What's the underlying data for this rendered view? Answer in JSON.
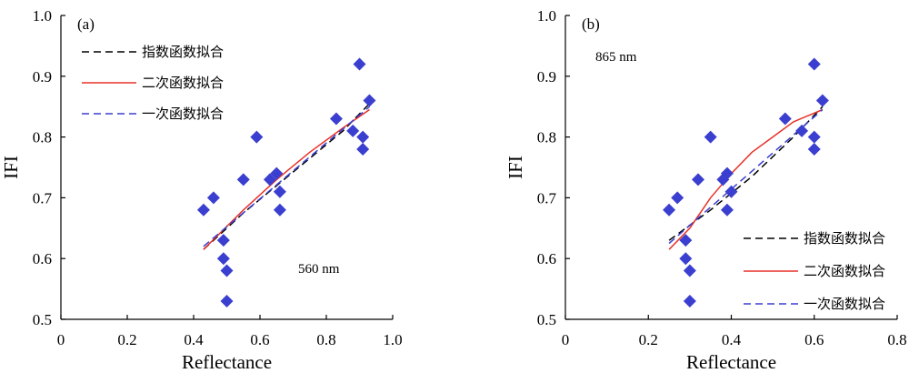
{
  "colors": {
    "points": "#3b3fcf",
    "exponential": "#000000",
    "quadratic": "#e8312a",
    "linear": "#3b3fcf"
  },
  "chart_data": [
    {
      "type": "scatter",
      "tag": "(a)",
      "annotation": "560 nm",
      "xlabel": "Reflectance",
      "ylabel": "IFI",
      "xlim": [
        0,
        1.0
      ],
      "ylim": [
        0.5,
        1.0
      ],
      "xticks": [
        0,
        0.2,
        0.4,
        0.6,
        0.8,
        1.0
      ],
      "xtick_labels": [
        "0",
        "0.2",
        "0.4",
        "0.6",
        "0.8",
        "1.0"
      ],
      "yticks": [
        0.5,
        0.6,
        0.7,
        0.8,
        0.9,
        1.0
      ],
      "ytick_labels": [
        "0.5",
        "0.6",
        "0.7",
        "0.8",
        "0.9",
        "1.0"
      ],
      "legend_position": "top-left",
      "points": [
        [
          0.43,
          0.68
        ],
        [
          0.46,
          0.7
        ],
        [
          0.49,
          0.63
        ],
        [
          0.49,
          0.6
        ],
        [
          0.5,
          0.58
        ],
        [
          0.5,
          0.53
        ],
        [
          0.55,
          0.73
        ],
        [
          0.59,
          0.8
        ],
        [
          0.63,
          0.73
        ],
        [
          0.65,
          0.74
        ],
        [
          0.66,
          0.68
        ],
        [
          0.66,
          0.71
        ],
        [
          0.83,
          0.83
        ],
        [
          0.88,
          0.81
        ],
        [
          0.9,
          0.92
        ],
        [
          0.91,
          0.8
        ],
        [
          0.91,
          0.78
        ],
        [
          0.93,
          0.86
        ]
      ],
      "fits": [
        {
          "name": "指数函数拟合",
          "kind": "exponential",
          "dash": "8,5",
          "x": [
            0.43,
            0.55,
            0.65,
            0.75,
            0.85,
            0.93
          ],
          "y": [
            0.615,
            0.675,
            0.72,
            0.765,
            0.81,
            0.855
          ]
        },
        {
          "name": "二次函数拟合",
          "kind": "quadratic",
          "dash": "",
          "x": [
            0.43,
            0.55,
            0.65,
            0.75,
            0.85,
            0.93
          ],
          "y": [
            0.615,
            0.68,
            0.73,
            0.775,
            0.815,
            0.845
          ]
        },
        {
          "name": "一次函数拟合",
          "kind": "linear",
          "dash": "8,5",
          "x": [
            0.43,
            0.93
          ],
          "y": [
            0.62,
            0.85
          ]
        }
      ]
    },
    {
      "type": "scatter",
      "tag": "(b)",
      "annotation": "865 nm",
      "xlabel": "Reflectance",
      "ylabel": "IFI",
      "xlim": [
        0,
        0.8
      ],
      "ylim": [
        0.5,
        1.0
      ],
      "xticks": [
        0,
        0.2,
        0.4,
        0.6,
        0.8
      ],
      "xtick_labels": [
        "0",
        "0.2",
        "0.4",
        "0.6",
        "0.8"
      ],
      "yticks": [
        0.5,
        0.6,
        0.7,
        0.8,
        0.9,
        1.0
      ],
      "ytick_labels": [
        "0.5",
        "0.6",
        "0.7",
        "0.8",
        "0.9",
        "1.0"
      ],
      "legend_position": "bottom-right",
      "points": [
        [
          0.25,
          0.68
        ],
        [
          0.27,
          0.7
        ],
        [
          0.29,
          0.63
        ],
        [
          0.29,
          0.6
        ],
        [
          0.3,
          0.58
        ],
        [
          0.3,
          0.53
        ],
        [
          0.32,
          0.73
        ],
        [
          0.35,
          0.8
        ],
        [
          0.38,
          0.73
        ],
        [
          0.39,
          0.74
        ],
        [
          0.39,
          0.68
        ],
        [
          0.4,
          0.71
        ],
        [
          0.53,
          0.83
        ],
        [
          0.57,
          0.81
        ],
        [
          0.6,
          0.92
        ],
        [
          0.6,
          0.8
        ],
        [
          0.6,
          0.78
        ],
        [
          0.62,
          0.86
        ]
      ],
      "fits": [
        {
          "name": "指数函数拟合",
          "kind": "exponential",
          "dash": "8,5",
          "x": [
            0.25,
            0.35,
            0.45,
            0.55,
            0.62
          ],
          "y": [
            0.63,
            0.68,
            0.735,
            0.8,
            0.85
          ]
        },
        {
          "name": "二次函数拟合",
          "kind": "quadratic",
          "dash": "",
          "x": [
            0.25,
            0.3,
            0.35,
            0.4,
            0.45,
            0.5,
            0.55,
            0.62
          ],
          "y": [
            0.615,
            0.65,
            0.7,
            0.74,
            0.775,
            0.8,
            0.825,
            0.845
          ]
        },
        {
          "name": "一次函数拟合",
          "kind": "linear",
          "dash": "8,5",
          "x": [
            0.25,
            0.62
          ],
          "y": [
            0.625,
            0.845
          ]
        }
      ]
    }
  ]
}
